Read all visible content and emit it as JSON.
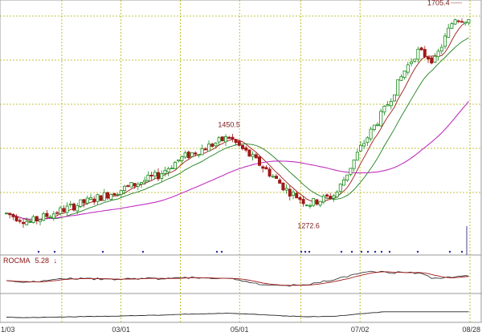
{
  "chart_data": {
    "type": "candlestick",
    "title": "",
    "x_ticks": [
      "1/03",
      "03/01",
      "05/01",
      "07/02",
      "08/28"
    ],
    "ylim": [
      1200,
      1720
    ],
    "grid": true,
    "annotations": [
      {
        "label": "1705.4",
        "x": "08/20",
        "y": 1705.4
      },
      {
        "label": "1450.5",
        "x": "04/26",
        "y": 1450.5
      },
      {
        "label": "1272.6",
        "x": "06/06",
        "y": 1272.6
      }
    ],
    "price_points": [
      [
        "1/03",
        1280
      ],
      [
        "01/15",
        1262
      ],
      [
        "01/30",
        1285
      ],
      [
        "03/01",
        1330
      ],
      [
        "03/20",
        1360
      ],
      [
        "04/01",
        1395
      ],
      [
        "04/15",
        1420
      ],
      [
        "04/26",
        1440
      ],
      [
        "05/01",
        1420
      ],
      [
        "05/15",
        1370
      ],
      [
        "05/25",
        1330
      ],
      [
        "06/06",
        1300
      ],
      [
        "06/20",
        1320
      ],
      [
        "07/02",
        1415
      ],
      [
        "07/15",
        1500
      ],
      [
        "07/25",
        1580
      ],
      [
        "08/01",
        1620
      ],
      [
        "08/10",
        1600
      ],
      [
        "08/20",
        1690
      ],
      [
        "08/28",
        1685
      ]
    ],
    "indicator": {
      "name": "ROCMA",
      "value": "5.28",
      "arrow": "↓"
    }
  },
  "colors": {
    "up": "#1a8a1a",
    "down": "#a01818",
    "ma_long": "#c030c0",
    "ma_mid": "#208020",
    "ma_short": "#a01818",
    "grid": "#b0b000"
  }
}
